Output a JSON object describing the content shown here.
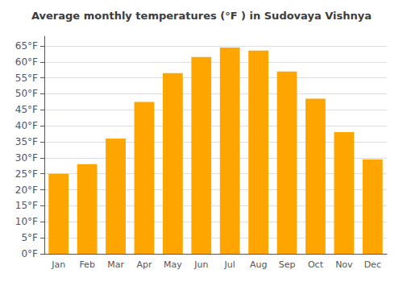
{
  "chart_data": {
    "type": "bar",
    "title": "Average monthly temperatures (°F ) in Sudovaya Vishnya",
    "categories": [
      "Jan",
      "Feb",
      "Mar",
      "Apr",
      "May",
      "Jun",
      "Jul",
      "Aug",
      "Sep",
      "Oct",
      "Nov",
      "Dec"
    ],
    "values": [
      25,
      28,
      36,
      47.5,
      56.5,
      61.5,
      64.5,
      63.5,
      57,
      48.5,
      38,
      29.5
    ],
    "color": "#FFA500",
    "ylim": [
      0,
      68
    ],
    "yticks": [
      {
        "value": 0,
        "label": "0°F"
      },
      {
        "value": 5,
        "label": "5°F"
      },
      {
        "value": 10,
        "label": "10°F"
      },
      {
        "value": 15,
        "label": "15°F"
      },
      {
        "value": 20,
        "label": "20°F"
      },
      {
        "value": 25,
        "label": "25°F"
      },
      {
        "value": 30,
        "label": "30°F"
      },
      {
        "value": 35,
        "label": "35°F"
      },
      {
        "value": 40,
        "label": "40°F"
      },
      {
        "value": 45,
        "label": "45°F"
      },
      {
        "value": 50,
        "label": "50°F"
      },
      {
        "value": 55,
        "label": "55°F"
      },
      {
        "value": 60,
        "label": "60°F"
      },
      {
        "value": 65,
        "label": "65°F"
      }
    ],
    "grid": true
  }
}
